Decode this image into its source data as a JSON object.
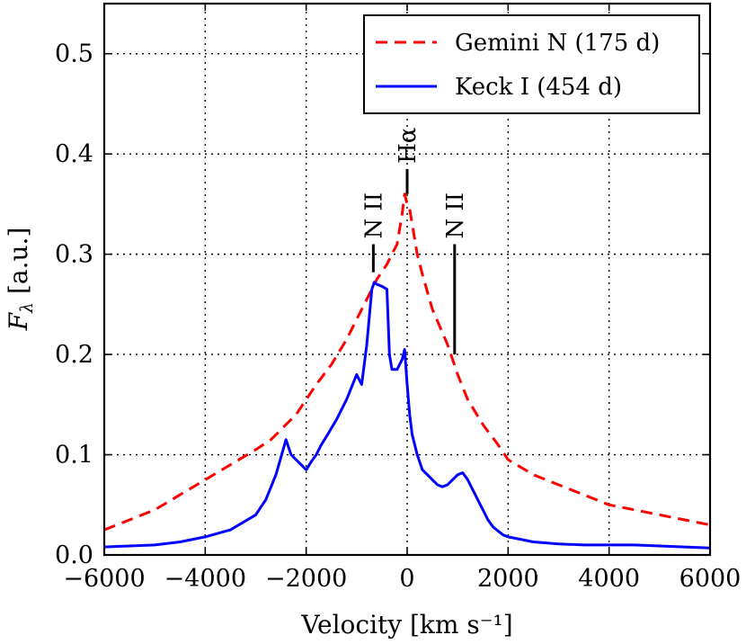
{
  "chart_data": {
    "type": "line",
    "xlabel": "Velocity [km s⁻¹]",
    "ylabel_main": "F",
    "ylabel_sub": "λ",
    "ylabel_unit": " [a.u.]",
    "xlim": [
      -6000,
      6000
    ],
    "ylim": [
      0.0,
      0.55
    ],
    "xticks": [
      -6000,
      -4000,
      -2000,
      0,
      2000,
      4000,
      6000
    ],
    "xtick_labels": [
      "−6000",
      "−4000",
      "−2000",
      "0",
      "2000",
      "4000",
      "6000"
    ],
    "yticks": [
      0.0,
      0.1,
      0.2,
      0.3,
      0.4,
      0.5
    ],
    "ytick_labels": [
      "0.0",
      "0.1",
      "0.2",
      "0.3",
      "0.4",
      "0.5"
    ],
    "grid": true,
    "legend_position": "top-right",
    "series": [
      {
        "name": "Gemini N (175 d)",
        "color": "#ff0000",
        "style": "dashed",
        "x": [
          -6000,
          -5500,
          -5000,
          -4500,
          -4000,
          -3500,
          -3000,
          -2700,
          -2500,
          -2400,
          -2200,
          -2000,
          -1800,
          -1500,
          -1200,
          -1000,
          -800,
          -600,
          -400,
          -300,
          -200,
          -100,
          -50,
          0,
          50,
          100,
          200,
          300,
          500,
          800,
          1000,
          1200,
          1500,
          1800,
          2000,
          2500,
          3000,
          3500,
          4000,
          4500,
          5000,
          5500,
          6000
        ],
        "y": [
          0.025,
          0.035,
          0.045,
          0.06,
          0.075,
          0.09,
          0.105,
          0.115,
          0.125,
          0.13,
          0.14,
          0.155,
          0.17,
          0.19,
          0.215,
          0.235,
          0.255,
          0.275,
          0.29,
          0.3,
          0.31,
          0.34,
          0.36,
          0.35,
          0.345,
          0.33,
          0.3,
          0.28,
          0.245,
          0.21,
          0.18,
          0.155,
          0.13,
          0.11,
          0.095,
          0.08,
          0.07,
          0.06,
          0.05,
          0.045,
          0.04,
          0.035,
          0.03
        ]
      },
      {
        "name": "Keck I (454 d)",
        "color": "#0000ff",
        "style": "solid",
        "x": [
          -6000,
          -5500,
          -5000,
          -4500,
          -4000,
          -3500,
          -3000,
          -2800,
          -2600,
          -2400,
          -2300,
          -2200,
          -2100,
          -2000,
          -1900,
          -1800,
          -1700,
          -1600,
          -1400,
          -1200,
          -1000,
          -950,
          -900,
          -800,
          -700,
          -650,
          -600,
          -500,
          -400,
          -350,
          -300,
          -200,
          -100,
          -50,
          0,
          50,
          100,
          200,
          300,
          400,
          500,
          600,
          700,
          800,
          900,
          1000,
          1100,
          1200,
          1300,
          1400,
          1500,
          1600,
          1700,
          1800,
          1900,
          2000,
          2500,
          3000,
          3500,
          4000,
          4500,
          5000,
          5500,
          6000
        ],
        "y": [
          0.008,
          0.009,
          0.01,
          0.013,
          0.018,
          0.025,
          0.04,
          0.055,
          0.08,
          0.115,
          0.1,
          0.095,
          0.09,
          0.085,
          0.093,
          0.1,
          0.11,
          0.118,
          0.135,
          0.155,
          0.18,
          0.175,
          0.17,
          0.21,
          0.265,
          0.272,
          0.27,
          0.268,
          0.265,
          0.2,
          0.185,
          0.185,
          0.195,
          0.205,
          0.17,
          0.14,
          0.12,
          0.1,
          0.085,
          0.08,
          0.075,
          0.07,
          0.068,
          0.07,
          0.075,
          0.08,
          0.082,
          0.075,
          0.065,
          0.055,
          0.045,
          0.035,
          0.028,
          0.024,
          0.02,
          0.018,
          0.013,
          0.011,
          0.01,
          0.01,
          0.01,
          0.009,
          0.008,
          0.007
        ]
      }
    ],
    "annotations": [
      {
        "label": "N II",
        "x": -670,
        "y_bottom": 0.282,
        "y_top": 0.31
      },
      {
        "label": "Hα",
        "x": 0,
        "y_bottom": 0.36,
        "y_top": 0.385
      },
      {
        "label": "N II",
        "x": 940,
        "y_bottom": 0.2,
        "y_top": 0.31
      }
    ]
  }
}
